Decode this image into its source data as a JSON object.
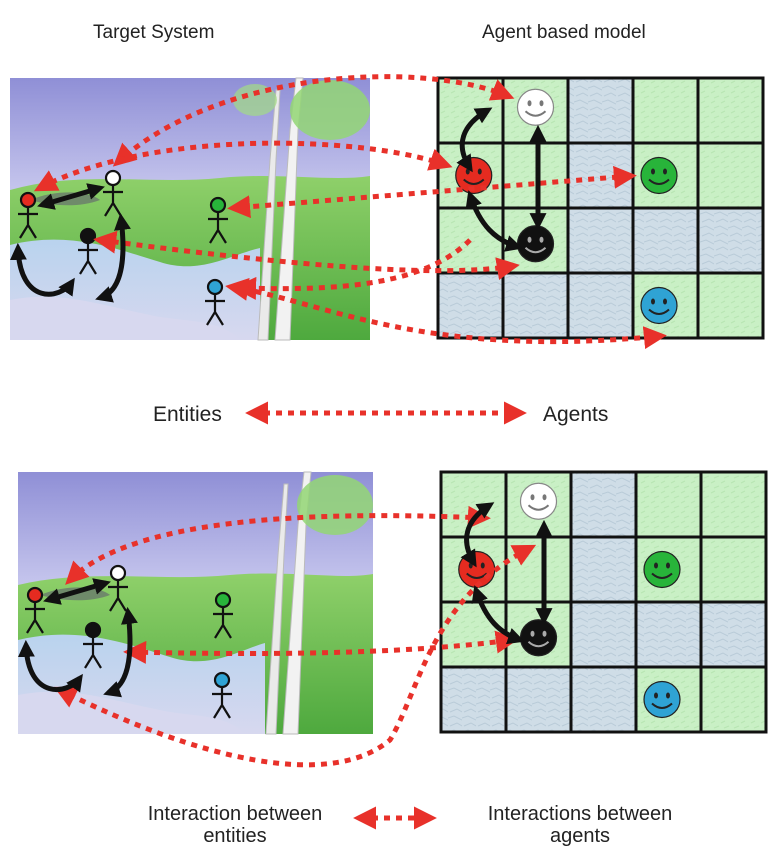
{
  "headers": {
    "target_system": "Target System",
    "agent_based_model": "Agent based model"
  },
  "middle_legend": {
    "left": "Entities",
    "right": "Agents"
  },
  "bottom_legend": {
    "left_line1": "Interaction between",
    "left_line2": "entities",
    "right_line1": "Interactions between",
    "right_line2": "agents"
  },
  "colors": {
    "arrow_red": "#e8312a",
    "grid_green": "#c9f0c5",
    "grid_blue": "#cfdde7",
    "agent_red": "#e52b20",
    "agent_white": "#ffffff",
    "agent_black": "#111111",
    "agent_green": "#28b43a",
    "agent_cyan": "#2fa3d4"
  },
  "grid": {
    "rows": 4,
    "cols": 5,
    "pattern": [
      [
        "green",
        "green",
        "blue",
        "green",
        "green"
      ],
      [
        "green",
        "green",
        "blue",
        "green",
        "green"
      ],
      [
        "green",
        "green",
        "blue",
        "blue",
        "blue"
      ],
      [
        "blue",
        "blue",
        "blue",
        "green",
        "green"
      ]
    ]
  },
  "agents": [
    "white",
    "red",
    "black",
    "green",
    "cyan"
  ],
  "entities": [
    "red",
    "white",
    "black",
    "green",
    "cyan"
  ]
}
